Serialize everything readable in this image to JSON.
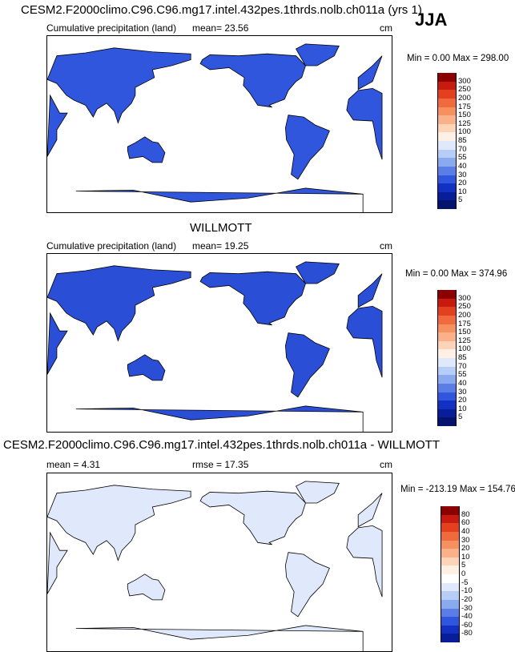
{
  "figure": {
    "season": "JJA",
    "units": "cm",
    "panels": [
      {
        "title": "CESM2.F2000climo.C96.C96.mg17.intel.432pes.1thrds.nolb.ch011a (yrs 1)",
        "subtitle": "Cumulative precipitation (land)",
        "stat_text": "mean=  23.56",
        "units": "cm",
        "minmax": "Min =   0.00 Max = 298.00",
        "colorbar_labels": [
          "300",
          "250",
          "200",
          "175",
          "150",
          "125",
          "100",
          "85",
          "70",
          "55",
          "40",
          "30",
          "20",
          "10",
          "5"
        ],
        "colorbar_colors": [
          "#8b0000",
          "#c81b10",
          "#e2401f",
          "#ef6a3c",
          "#f6905f",
          "#fab18a",
          "#fdd4b8",
          "#fff0e6",
          "#dfe9fb",
          "#b6cdf7",
          "#8aaaf0",
          "#5a7ee6",
          "#2f56dc",
          "#1231c2",
          "#071e98",
          "#03136e"
        ],
        "land_color": "#2f56dc"
      },
      {
        "title": "WILLMOTT",
        "subtitle": "Cumulative precipitation (land)",
        "stat_text": "mean=  19.25",
        "units": "cm",
        "minmax": "Min =   0.00 Max = 374.96",
        "colorbar_labels": [
          "300",
          "250",
          "200",
          "175",
          "150",
          "125",
          "100",
          "85",
          "70",
          "55",
          "40",
          "30",
          "20",
          "10",
          "5"
        ],
        "colorbar_colors": [
          "#8b0000",
          "#c81b10",
          "#e2401f",
          "#ef6a3c",
          "#f6905f",
          "#fab18a",
          "#fdd4b8",
          "#fff0e6",
          "#dfe9fb",
          "#b6cdf7",
          "#8aaaf0",
          "#5a7ee6",
          "#2f56dc",
          "#1231c2",
          "#071e98",
          "#03136e"
        ],
        "land_color": "#2a4fd6"
      },
      {
        "title": "CESM2.F2000climo.C96.C96.mg17.intel.432pes.1thrds.nolb.ch011a - WILLMOTT",
        "subtitle": "mean =   4.31",
        "stat_text": "rmse =  17.35",
        "units": "cm",
        "minmax": "Min = -213.19 Max = 154.76",
        "colorbar_labels": [
          "80",
          "60",
          "40",
          "30",
          "20",
          "10",
          "5",
          "0",
          "-5",
          "-10",
          "-20",
          "-30",
          "-40",
          "-60",
          "-80"
        ],
        "colorbar_colors": [
          "#8b0000",
          "#c81b10",
          "#e2401f",
          "#ef6a3c",
          "#f6905f",
          "#fab18a",
          "#fdd4b8",
          "#fff0e6",
          "#ffffff",
          "#dfe9fb",
          "#b6cdf7",
          "#8aaaf0",
          "#5a7ee6",
          "#2f56dc",
          "#1231c2",
          "#071e98"
        ],
        "land_color": "#dfe9fb"
      }
    ]
  },
  "chart_data": [
    {
      "type": "heatmap",
      "title": "CESM2.F2000climo.C96.C96.mg17.intel.432pes.1thrds.nolb.ch011a (yrs 1)",
      "variable": "Cumulative precipitation (land)",
      "units": "cm",
      "season": "JJA",
      "mean": 23.56,
      "min": 0.0,
      "max": 298.0,
      "levels": [
        5,
        10,
        20,
        30,
        40,
        55,
        70,
        85,
        100,
        125,
        150,
        175,
        200,
        250,
        300
      ]
    },
    {
      "type": "heatmap",
      "title": "WILLMOTT",
      "variable": "Cumulative precipitation (land)",
      "units": "cm",
      "mean": 19.25,
      "min": 0.0,
      "max": 374.96,
      "levels": [
        5,
        10,
        20,
        30,
        40,
        55,
        70,
        85,
        100,
        125,
        150,
        175,
        200,
        250,
        300
      ]
    },
    {
      "type": "heatmap",
      "title": "CESM2.F2000climo.C96.C96.mg17.intel.432pes.1thrds.nolb.ch011a - WILLMOTT",
      "units": "cm",
      "mean": 4.31,
      "rmse": 17.35,
      "min": -213.19,
      "max": 154.76,
      "levels": [
        -80,
        -60,
        -40,
        -30,
        -20,
        -10,
        -5,
        0,
        5,
        10,
        20,
        30,
        40,
        60,
        80
      ]
    }
  ]
}
